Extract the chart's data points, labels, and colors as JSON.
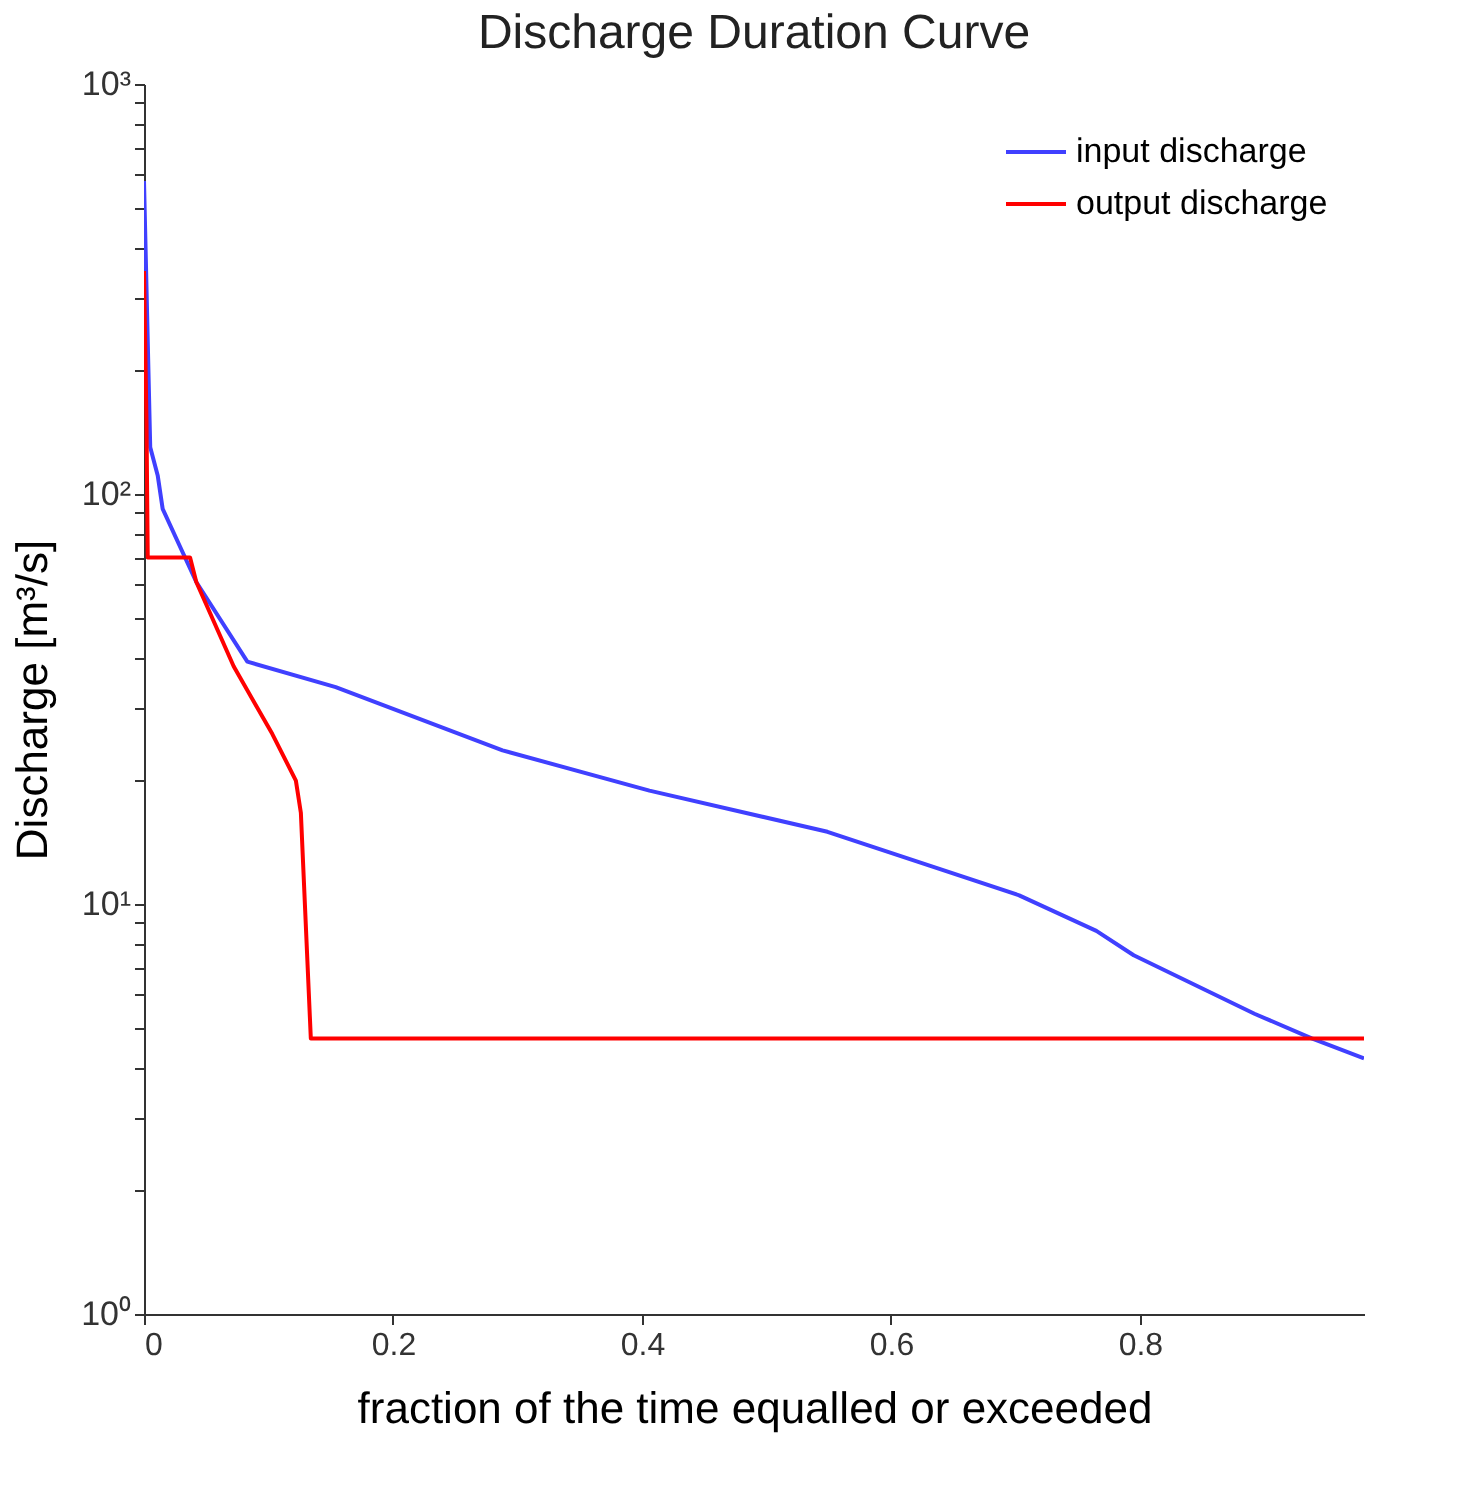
{
  "chart_data": {
    "type": "line",
    "title": "Discharge Duration Curve",
    "xlabel": "fraction of the time equalled or exceeded",
    "ylabel": "Discharge  [m³/s]",
    "log": "y",
    "xlim": [
      0,
      0.98
    ],
    "xticks": [
      0,
      0.2,
      0.4,
      0.6,
      0.8
    ],
    "ylim": [
      1,
      1000
    ],
    "yticks": [
      {
        "value": 1,
        "label": "10⁰"
      },
      {
        "value": 2,
        "label": null
      },
      {
        "value": 3,
        "label": null
      },
      {
        "value": 4,
        "label": null
      },
      {
        "value": 5,
        "label": null
      },
      {
        "value": 6,
        "label": null
      },
      {
        "value": 7,
        "label": null
      },
      {
        "value": 8,
        "label": null
      },
      {
        "value": 9,
        "label": null
      },
      {
        "value": 10,
        "label": "10¹"
      },
      {
        "value": 20,
        "label": null
      },
      {
        "value": 30,
        "label": null
      },
      {
        "value": 40,
        "label": null
      },
      {
        "value": 50,
        "label": null
      },
      {
        "value": 60,
        "label": null
      },
      {
        "value": 70,
        "label": null
      },
      {
        "value": 80,
        "label": null
      },
      {
        "value": 90,
        "label": null
      },
      {
        "value": 100,
        "label": "10²"
      },
      {
        "value": 200,
        "label": null
      },
      {
        "value": 300,
        "label": null
      },
      {
        "value": 400,
        "label": null
      },
      {
        "value": 500,
        "label": null
      },
      {
        "value": 600,
        "label": null
      },
      {
        "value": 700,
        "label": null
      },
      {
        "value": 800,
        "label": null
      },
      {
        "value": 900,
        "label": null
      },
      {
        "value": 1000,
        "label": "10³"
      }
    ],
    "grid": false,
    "legend": "top right",
    "marker": "none",
    "line_style": "solid",
    "series": [
      {
        "name": "input discharge",
        "color": "#4040ff",
        "x": [
          0,
          0.005,
          0.011,
          0.015,
          0.042,
          0.083,
          0.154,
          0.288,
          0.406,
          0.549,
          0.631,
          0.703,
          0.765,
          0.795,
          0.892,
          0.938,
          0.98
        ],
        "values": [
          580,
          130,
          111,
          92,
          61,
          39,
          33.8,
          23.7,
          18.9,
          15.0,
          12.4,
          10.5,
          8.6,
          7.5,
          5.4,
          4.7,
          4.2
        ]
      },
      {
        "name": "output discharge",
        "color": "#ff0000",
        "x": [
          0,
          0.002,
          0.003,
          0.037,
          0.042,
          0.072,
          0.103,
          0.122,
          0.126,
          0.134,
          0.98
        ],
        "values": [
          350,
          150,
          70,
          70,
          61,
          38,
          26,
          20,
          16.7,
          4.7,
          4.7
        ]
      }
    ]
  }
}
